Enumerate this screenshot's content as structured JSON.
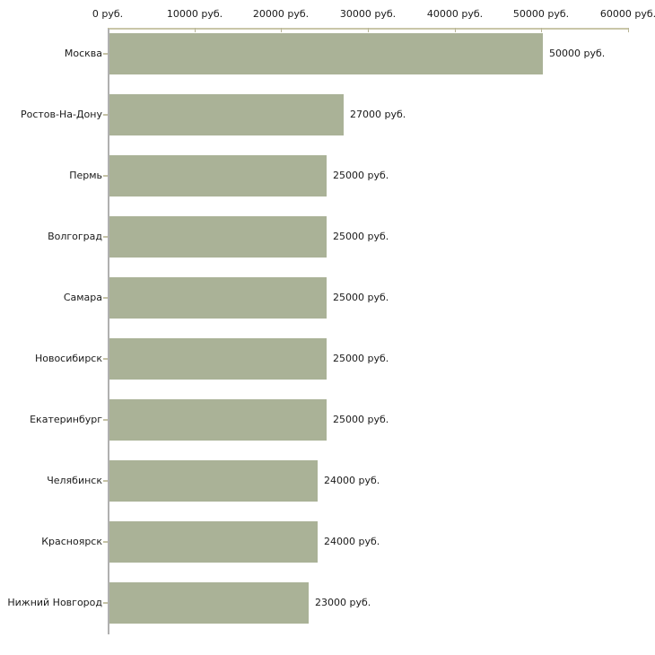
{
  "chart_data": {
    "type": "bar",
    "orientation": "horizontal",
    "title": "",
    "xlabel": "",
    "ylabel": "",
    "unit": "руб.",
    "grid": false,
    "legend": false,
    "xlim": [
      0,
      60000
    ],
    "categories": [
      "Москва",
      "Ростов-На-Дону",
      "Пермь",
      "Волгоград",
      "Самара",
      "Новосибирск",
      "Екатеринбург",
      "Челябинск",
      "Красноярск",
      "Нижний Новгород"
    ],
    "values": [
      50000,
      27000,
      25000,
      25000,
      25000,
      25000,
      25000,
      24000,
      24000,
      23000
    ],
    "value_labels": [
      "50000 руб.",
      "27000 руб.",
      "25000 руб.",
      "25000 руб.",
      "25000 руб.",
      "25000 руб.",
      "25000 руб.",
      "24000 руб.",
      "24000 руб.",
      "23000 руб."
    ],
    "x_tick_values": [
      0,
      10000,
      20000,
      30000,
      40000,
      50000,
      60000
    ],
    "x_tick_labels": [
      "0 руб.",
      "10000 руб.",
      "20000 руб.",
      "30000 руб.",
      "40000 руб.",
      "50000 руб.",
      "60000 руб."
    ],
    "colors": {
      "bar": "#aab297",
      "x_axis_line": "#c9c6a8",
      "x_tick_mark": "#b9b698",
      "category_tick_mark": "#c5c2a6",
      "y_axis_line": "#b0b0b0",
      "text": "#1a1a1a",
      "background": "#ffffff"
    }
  }
}
